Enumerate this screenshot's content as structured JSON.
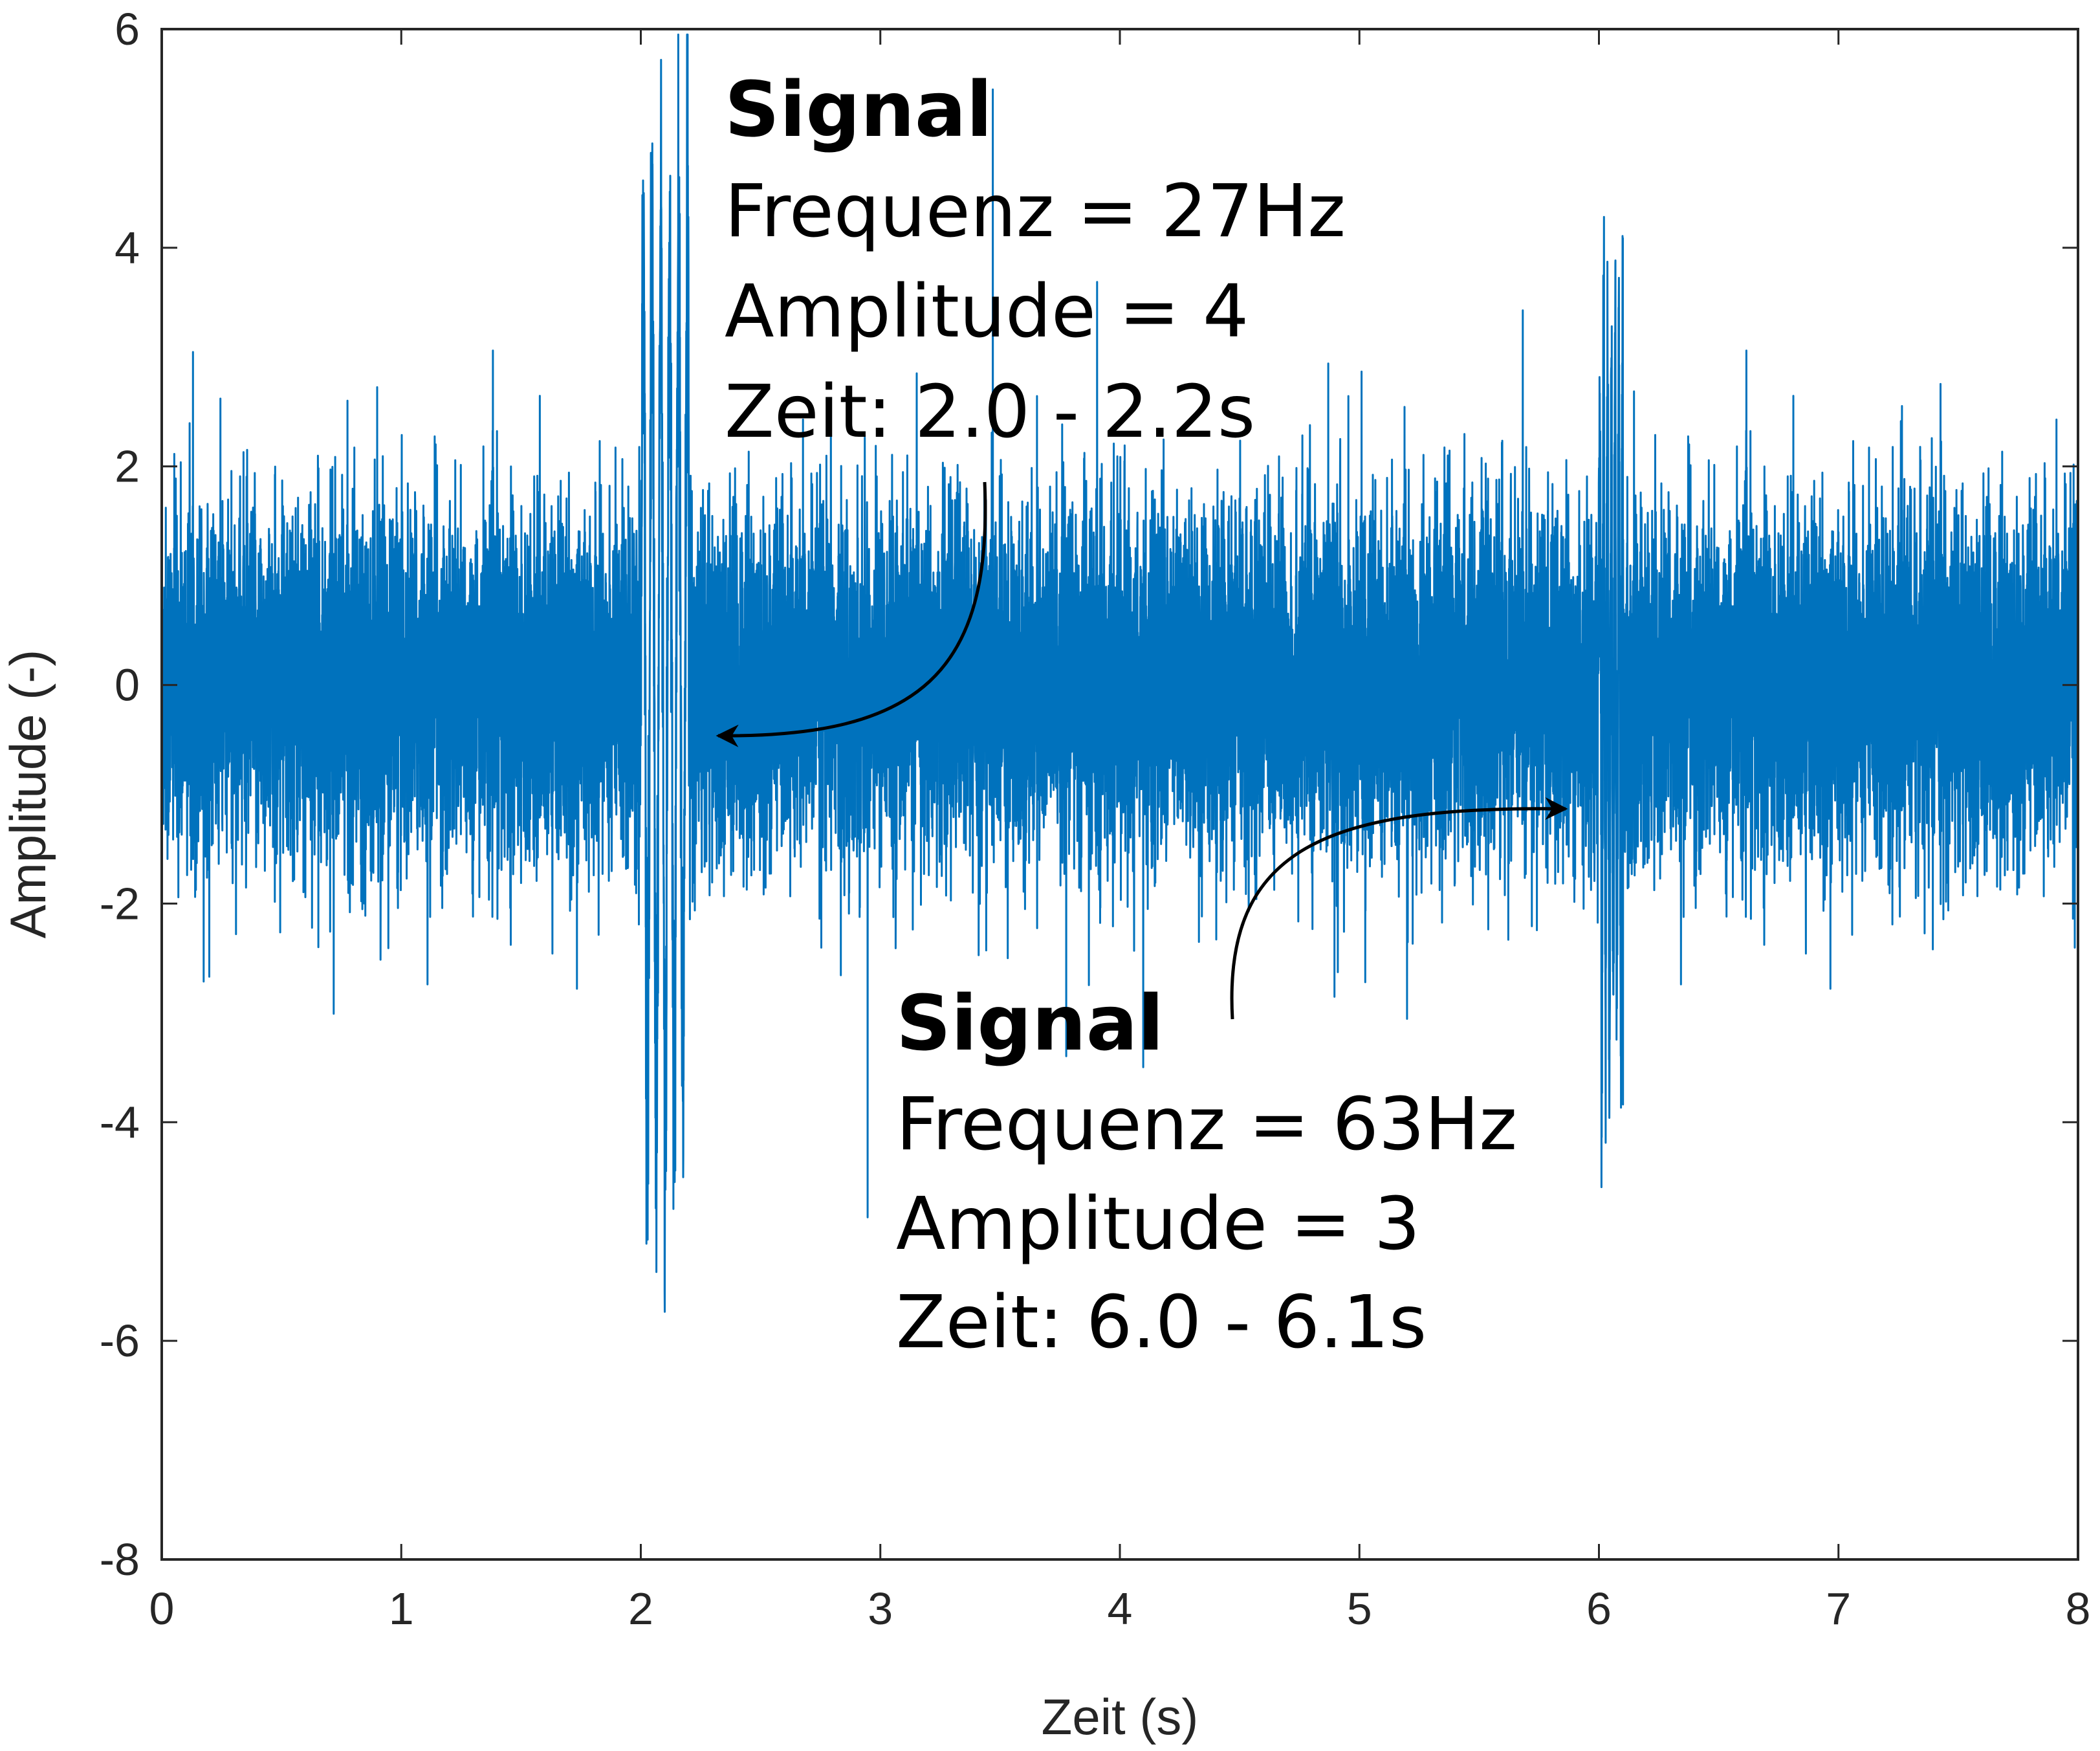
{
  "chart_data": {
    "type": "line",
    "xlabel": "Zeit (s)",
    "ylabel": "Amplitude (-)",
    "xlim": [
      0,
      8
    ],
    "ylim": [
      -8,
      6
    ],
    "xticks": [
      "0",
      "1",
      "2",
      "3",
      "4",
      "5",
      "6",
      "7",
      "8"
    ],
    "yticks": [
      "6",
      "4",
      "2",
      "0",
      "-2",
      "-4",
      "-6",
      "-8"
    ],
    "grid": false,
    "line_color": "#0072BD",
    "series": [
      {
        "noise_amplitude": 1,
        "bursts": [
          {
            "frequency_hz": 27,
            "amplitude": 4,
            "t_start": 2.0,
            "t_end": 2.2
          },
          {
            "frequency_hz": 63,
            "amplitude": 3,
            "t_start": 6.0,
            "t_end": 6.1
          }
        ]
      }
    ],
    "annotations": [
      {
        "title": "Signal",
        "lines": [
          "Frequenz = 27Hz",
          "Amplitude = 4",
          "Zeit: 2.0 - 2.2s"
        ]
      },
      {
        "title": "Signal",
        "lines": [
          "Frequenz = 63Hz",
          "Amplitude = 3",
          "Zeit: 6.0 - 6.1s"
        ]
      }
    ]
  }
}
